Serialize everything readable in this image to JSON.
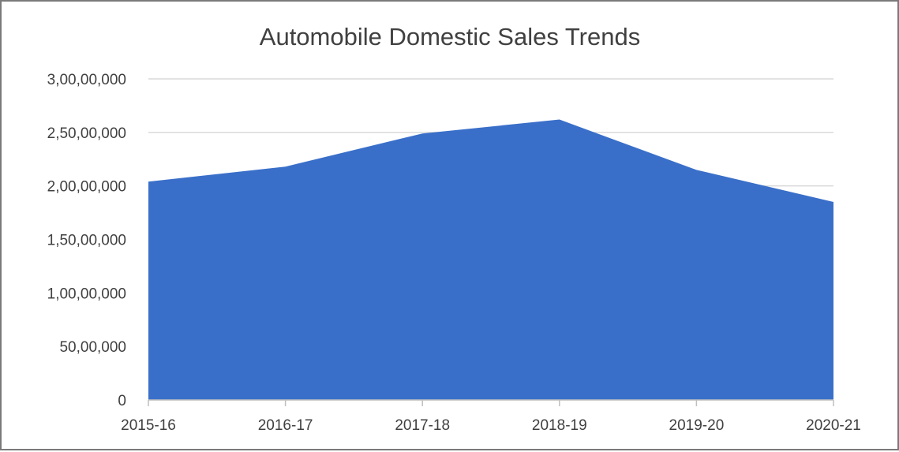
{
  "chart_data": {
    "type": "area",
    "title": "Automobile Domestic Sales Trends",
    "categories": [
      "2015-16",
      "2016-17",
      "2017-18",
      "2018-19",
      "2019-20",
      "2020-21"
    ],
    "series": [
      {
        "values": [
          20400000,
          21800000,
          24900000,
          26200000,
          21500000,
          18500000
        ]
      }
    ],
    "ylim": [
      0,
      30000000
    ],
    "y_ticks": [
      0,
      5000000,
      10000000,
      15000000,
      20000000,
      25000000,
      30000000
    ],
    "y_tick_labels": [
      "0",
      "50,00,000",
      "1,00,00,000",
      "1,50,00,000",
      "2,00,00,000",
      "2,50,00,000",
      "3,00,00,000"
    ],
    "grid": true,
    "legend": "none",
    "colors": {
      "fill": "#3a6fc9",
      "grid": "#d9d9d9",
      "text": "#404040"
    }
  }
}
